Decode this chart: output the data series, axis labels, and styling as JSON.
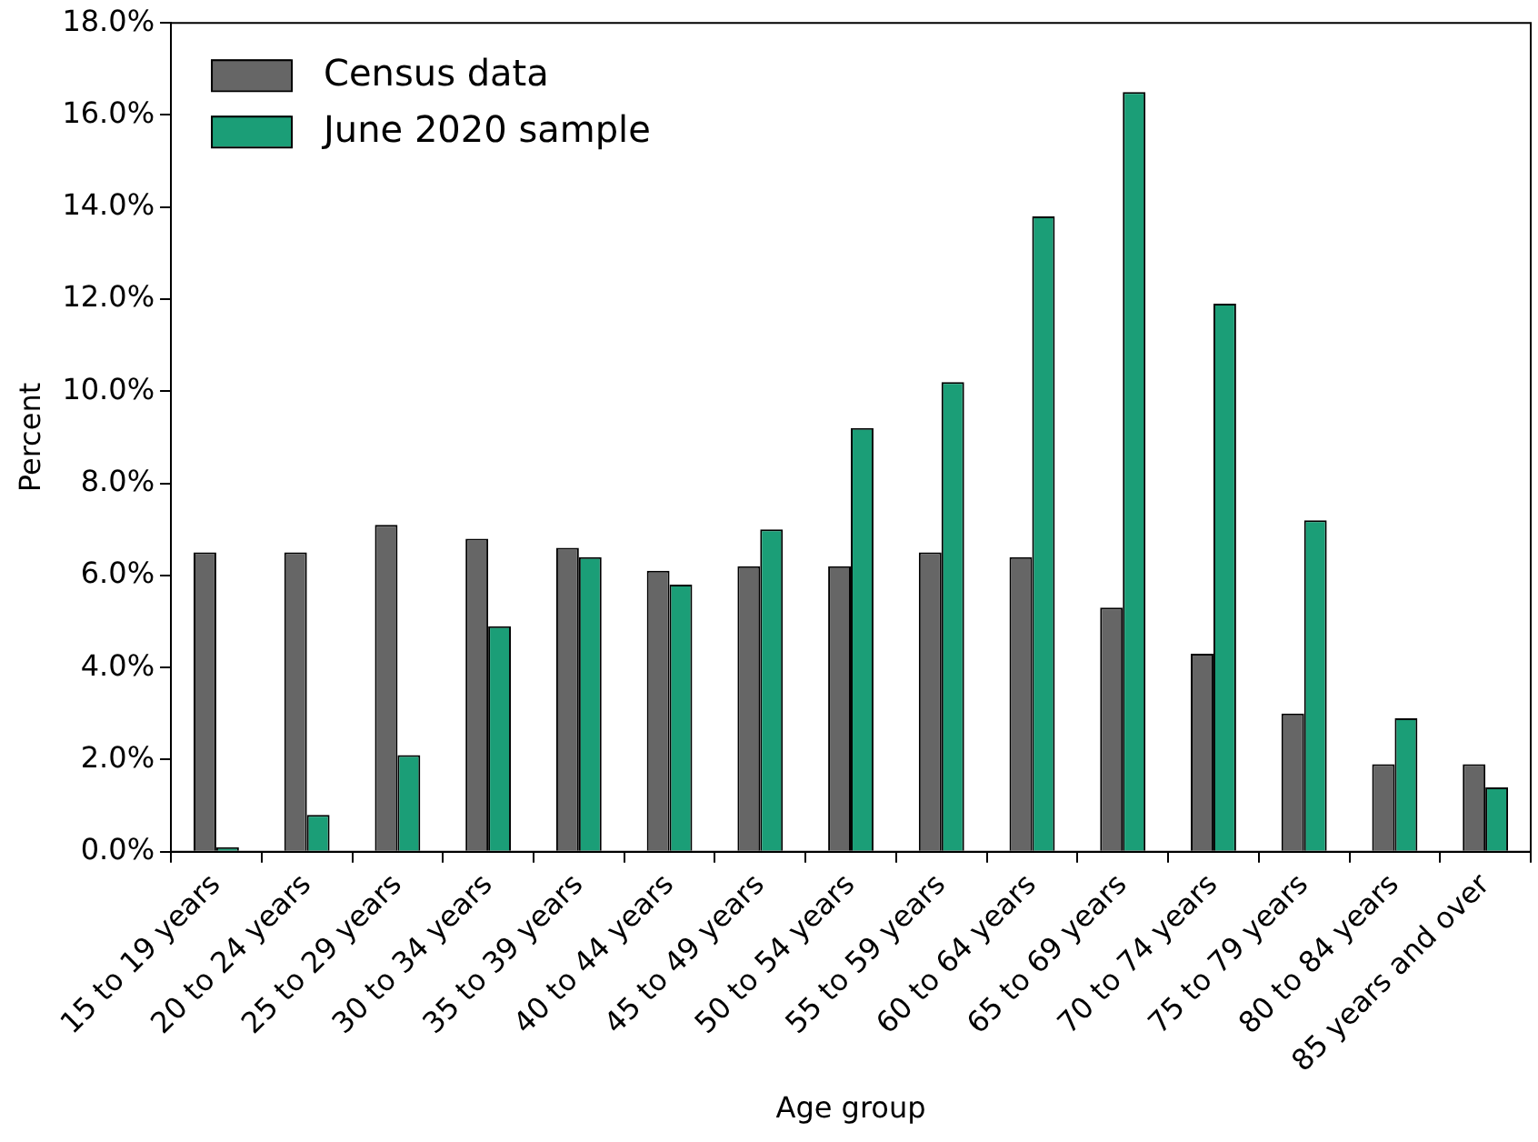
{
  "chart_data": {
    "type": "bar",
    "xlabel": "Age group",
    "ylabel": "Percent",
    "categories": [
      "15 to 19 years",
      "20 to 24 years",
      "25 to 29 years",
      "30 to 34 years",
      "35 to 39 years",
      "40 to 44 years",
      "45 to 49 years",
      "50 to 54 years",
      "55 to 59 years",
      "60 to 64 years",
      "65 to 69 years",
      "70 to 74 years",
      "75 to 79 years",
      "80 to 84 years",
      "85 years and over"
    ],
    "series": [
      {
        "name": "Census data",
        "color": "#666666",
        "values": [
          6.5,
          6.5,
          7.1,
          6.8,
          6.6,
          6.1,
          6.2,
          6.2,
          6.5,
          6.4,
          5.3,
          4.3,
          3.0,
          1.9,
          1.9
        ]
      },
      {
        "name": "June 2020 sample",
        "color": "#1b9e77",
        "values": [
          0.1,
          0.8,
          2.1,
          4.9,
          6.4,
          5.8,
          7.0,
          9.2,
          10.2,
          13.8,
          16.5,
          11.9,
          7.2,
          2.9,
          1.4
        ]
      }
    ],
    "ylim": [
      0,
      18
    ],
    "yticks": [
      {
        "value": 0,
        "label": "0.0%"
      },
      {
        "value": 2,
        "label": "2.0%"
      },
      {
        "value": 4,
        "label": "4.0%"
      },
      {
        "value": 6,
        "label": "6.0%"
      },
      {
        "value": 8,
        "label": "8.0%"
      },
      {
        "value": 10,
        "label": "10.0%"
      },
      {
        "value": 12,
        "label": "12.0%"
      },
      {
        "value": 14,
        "label": "14.0%"
      },
      {
        "value": 16,
        "label": "16.0%"
      },
      {
        "value": 18,
        "label": "18.0%"
      }
    ],
    "grid": false,
    "legend": "top left"
  }
}
